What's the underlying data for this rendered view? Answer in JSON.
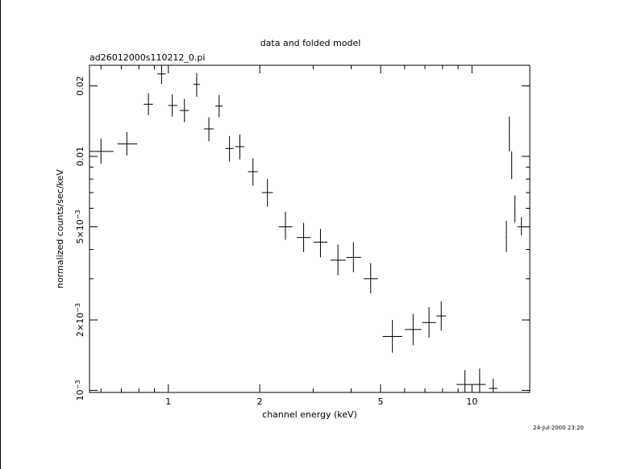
{
  "chart_data": {
    "type": "scatter",
    "title": "data and folded model",
    "subtitle": "ad26012000s110212_0.pi",
    "xlabel": "channel energy (keV)",
    "ylabel": "normalized counts/sec/keV",
    "timestamp": "24-Jul-2000 23:20",
    "x_scale": "log",
    "y_scale": "log",
    "xlim": [
      0.55,
      15.5
    ],
    "ylim": [
      0.00098,
      0.0245
    ],
    "x_major_ticks": [
      1,
      2,
      5,
      10
    ],
    "x_tick_labels": [
      "1",
      "2",
      "5",
      "10"
    ],
    "y_major_ticks": [
      0.001,
      0.002,
      0.005,
      0.01,
      0.02
    ],
    "y_tick_labels": [
      {
        "mant": "10",
        "sup": "−3"
      },
      {
        "mant": "2×10",
        "sup": "−3"
      },
      {
        "mant": "5×10",
        "sup": "−3"
      },
      {
        "mant": "0.01",
        "sup": ""
      },
      {
        "mant": "0.02",
        "sup": ""
      }
    ],
    "grid": false,
    "points": [
      {
        "x": 0.6,
        "xlo": 0.55,
        "xhi": 0.66,
        "y": 0.0105,
        "ylo": 0.0093,
        "yhi": 0.0119
      },
      {
        "x": 0.73,
        "xlo": 0.68,
        "xhi": 0.79,
        "y": 0.0113,
        "ylo": 0.0101,
        "yhi": 0.0127
      },
      {
        "x": 0.86,
        "xlo": 0.83,
        "xhi": 0.89,
        "y": 0.0167,
        "ylo": 0.015,
        "yhi": 0.0186
      },
      {
        "x": 0.95,
        "xlo": 0.92,
        "xhi": 0.98,
        "y": 0.0225,
        "ylo": 0.0204,
        "yhi": 0.0245
      },
      {
        "x": 1.03,
        "xlo": 1.0,
        "xhi": 1.07,
        "y": 0.0165,
        "ylo": 0.0148,
        "yhi": 0.0184
      },
      {
        "x": 1.13,
        "xlo": 1.09,
        "xhi": 1.17,
        "y": 0.0157,
        "ylo": 0.014,
        "yhi": 0.0176
      },
      {
        "x": 1.24,
        "xlo": 1.21,
        "xhi": 1.27,
        "y": 0.0203,
        "ylo": 0.018,
        "yhi": 0.0227
      },
      {
        "x": 1.36,
        "xlo": 1.31,
        "xhi": 1.41,
        "y": 0.0131,
        "ylo": 0.0116,
        "yhi": 0.0147
      },
      {
        "x": 1.47,
        "xlo": 1.43,
        "xhi": 1.51,
        "y": 0.0164,
        "ylo": 0.0147,
        "yhi": 0.0183
      },
      {
        "x": 1.59,
        "xlo": 1.54,
        "xhi": 1.64,
        "y": 0.0108,
        "ylo": 0.0095,
        "yhi": 0.0122
      },
      {
        "x": 1.72,
        "xlo": 1.66,
        "xhi": 1.78,
        "y": 0.011,
        "ylo": 0.0097,
        "yhi": 0.0124
      },
      {
        "x": 1.9,
        "xlo": 1.83,
        "xhi": 1.97,
        "y": 0.0086,
        "ylo": 0.0075,
        "yhi": 0.0098
      },
      {
        "x": 2.12,
        "xlo": 2.03,
        "xhi": 2.21,
        "y": 0.007,
        "ylo": 0.0061,
        "yhi": 0.008
      },
      {
        "x": 2.43,
        "xlo": 2.31,
        "xhi": 2.56,
        "y": 0.005,
        "ylo": 0.0044,
        "yhi": 0.0058
      },
      {
        "x": 2.79,
        "xlo": 2.65,
        "xhi": 2.94,
        "y": 0.0045,
        "ylo": 0.0039,
        "yhi": 0.0052
      },
      {
        "x": 3.17,
        "xlo": 3.01,
        "xhi": 3.34,
        "y": 0.0043,
        "ylo": 0.0037,
        "yhi": 0.0049
      },
      {
        "x": 3.62,
        "xlo": 3.42,
        "xhi": 3.84,
        "y": 0.0036,
        "ylo": 0.0031,
        "yhi": 0.0042
      },
      {
        "x": 4.07,
        "xlo": 3.86,
        "xhi": 4.31,
        "y": 0.0037,
        "ylo": 0.0032,
        "yhi": 0.0043
      },
      {
        "x": 4.64,
        "xlo": 4.4,
        "xhi": 4.9,
        "y": 0.003,
        "ylo": 0.0026,
        "yhi": 0.0035
      },
      {
        "x": 5.47,
        "xlo": 5.08,
        "xhi": 5.89,
        "y": 0.0017,
        "ylo": 0.00145,
        "yhi": 0.002
      },
      {
        "x": 6.4,
        "xlo": 6.0,
        "xhi": 6.82,
        "y": 0.00182,
        "ylo": 0.00156,
        "yhi": 0.00212
      },
      {
        "x": 7.22,
        "xlo": 6.85,
        "xhi": 7.62,
        "y": 0.00195,
        "ylo": 0.00168,
        "yhi": 0.00227
      },
      {
        "x": 7.92,
        "xlo": 7.64,
        "xhi": 8.22,
        "y": 0.00208,
        "ylo": 0.0018,
        "yhi": 0.0024
      },
      {
        "x": 9.48,
        "xlo": 8.89,
        "xhi": 10.12,
        "y": 0.00106,
        "ylo": 0.00098,
        "yhi": 0.00122
      },
      {
        "x": 10.6,
        "xlo": 10.12,
        "xhi": 11.1,
        "y": 0.00106,
        "ylo": 0.00098,
        "yhi": 0.00124
      },
      {
        "x": 11.75,
        "xlo": 11.38,
        "xhi": 12.13,
        "y": 0.00102,
        "ylo": 0.00098,
        "yhi": 0.00112
      },
      {
        "x": 12.98,
        "xlo": 12.93,
        "xhi": 13.03,
        "y": 0.0045,
        "ylo": 0.0039,
        "yhi": 0.0053
      },
      {
        "x": 13.28,
        "xlo": 13.24,
        "xhi": 13.32,
        "y": 0.0125,
        "ylo": 0.0105,
        "yhi": 0.0148
      },
      {
        "x": 13.52,
        "xlo": 13.49,
        "xhi": 13.55,
        "y": 0.0092,
        "ylo": 0.008,
        "yhi": 0.0105
      },
      {
        "x": 13.85,
        "xlo": 13.8,
        "xhi": 13.9,
        "y": 0.006,
        "ylo": 0.0052,
        "yhi": 0.0068
      },
      {
        "x": 14.55,
        "xlo": 14.1,
        "xhi": 15.0,
        "y": 0.005,
        "ylo": 0.0046,
        "yhi": 0.0055
      }
    ]
  }
}
